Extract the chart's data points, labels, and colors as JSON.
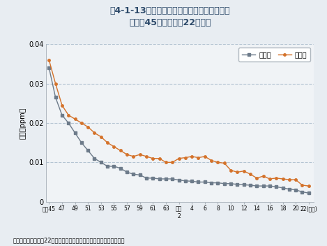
{
  "title_line1": "围4-1-13　二酸化硫黄濃度の年平均値の推移",
  "title_line2": "（昭和45年度～平成22年度）",
  "ylabel": "濃度（ppm）",
  "source_text": "資料：環境省「平成22年度大気氚染状況について（報道発表資料）」",
  "ylim": [
    0,
    0.04
  ],
  "yticks": [
    0,
    0.01,
    0.02,
    0.03,
    0.04
  ],
  "legend_ippan": "一般局",
  "legend_jihai": "自排局",
  "ippan_color": "#6d7b8a",
  "jihai_color": "#d4722a",
  "title_color": "#2d4a6a",
  "background_color": "#e8edf2",
  "plot_background": "#f0f3f6",
  "grid_color": "#aabccc",
  "ippan_years": [
    1970,
    1971,
    1972,
    1973,
    1974,
    1975,
    1976,
    1977,
    1978,
    1979,
    1980,
    1981,
    1982,
    1983,
    1984,
    1985,
    1986,
    1987,
    1988,
    1989,
    1990,
    1991,
    1992,
    1993,
    1994,
    1995,
    1996,
    1997,
    1998,
    1999,
    2000,
    2001,
    2002,
    2003,
    2004,
    2005,
    2006,
    2007,
    2008,
    2009,
    2010
  ],
  "ippan_values": [
    0.034,
    0.0265,
    0.022,
    0.02,
    0.0175,
    0.015,
    0.013,
    0.011,
    0.01,
    0.009,
    0.009,
    0.0085,
    0.0075,
    0.007,
    0.0068,
    0.006,
    0.006,
    0.0058,
    0.0058,
    0.0058,
    0.0055,
    0.0053,
    0.0052,
    0.005,
    0.005,
    0.0048,
    0.0048,
    0.0046,
    0.0046,
    0.0044,
    0.0043,
    0.0042,
    0.004,
    0.004,
    0.004,
    0.0038,
    0.0035,
    0.0032,
    0.003,
    0.0025,
    0.0022
  ],
  "jihai_years": [
    1970,
    1971,
    1972,
    1973,
    1974,
    1975,
    1976,
    1977,
    1978,
    1979,
    1980,
    1981,
    1982,
    1983,
    1984,
    1985,
    1986,
    1987,
    1988,
    1989,
    1990,
    1991,
    1992,
    1993,
    1994,
    1995,
    1996,
    1997,
    1998,
    1999,
    2000,
    2001,
    2002,
    2003,
    2004,
    2005,
    2006,
    2007,
    2008,
    2009,
    2010
  ],
  "jihai_values": [
    0.036,
    0.03,
    0.0245,
    0.022,
    0.021,
    0.02,
    0.019,
    0.0175,
    0.0165,
    0.015,
    0.014,
    0.013,
    0.012,
    0.0115,
    0.012,
    0.0115,
    0.011,
    0.011,
    0.01,
    0.01,
    0.011,
    0.0112,
    0.0115,
    0.0112,
    0.0115,
    0.0105,
    0.01,
    0.0098,
    0.008,
    0.0075,
    0.0078,
    0.007,
    0.006,
    0.0065,
    0.0058,
    0.006,
    0.0058,
    0.0056,
    0.0056,
    0.0042,
    0.004
  ]
}
